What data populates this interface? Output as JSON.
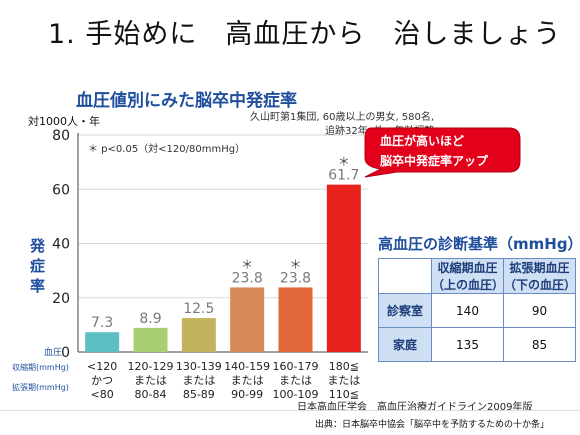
{
  "slide_title": "1. 手始めに　高血圧から　治しましょう",
  "callout": {
    "line1": "血圧が高いほど",
    "line2": "脳卒中発症率アップ",
    "color": "#e3001b"
  },
  "diagnosis_table": {
    "title": "高血圧の診断基準（mmHg）",
    "col_headers": [
      {
        "line1": "収縮期血圧",
        "line2": "（上の血圧）"
      },
      {
        "line1": "拡張期血圧",
        "line2": "（下の血圧）"
      }
    ],
    "rows": [
      {
        "label": "診察室",
        "systolic": "140",
        "diastolic": "90"
      },
      {
        "label": "家庭",
        "systolic": "135",
        "diastolic": "85"
      }
    ]
  },
  "guideline_source": "日本高血圧学会　高血圧治療ガイドライン2009年版",
  "citation": "出典：日本脳卒中協会「脳卒中を予防するための十か条」",
  "chart_data": {
    "type": "bar",
    "title": "血圧値別にみた脳卒中発症率",
    "y_unit": "対1000人・年",
    "ylabel": "発症率",
    "ylim": [
      0,
      80
    ],
    "yticks": [
      0,
      20,
      40,
      60,
      80
    ],
    "study_note_line1": "久山町第1集団, 60歳以上の男女, 580名,",
    "study_note_line2": "追跡32年, 性・年齢調整",
    "significance_note": "＊ p<0.05（対<120/80mmHg）",
    "axis_row_labels": {
      "bp": "血圧",
      "systolic": "収縮期(mmHg)",
      "diastolic": "拡張期(mmHg)"
    },
    "categories": [
      {
        "systolic": "<120",
        "conj": "かつ",
        "diastolic": "<80"
      },
      {
        "systolic": "120-129",
        "conj": "または",
        "diastolic": "80-84"
      },
      {
        "systolic": "130-139",
        "conj": "または",
        "diastolic": "85-89"
      },
      {
        "systolic": "140-159",
        "conj": "または",
        "diastolic": "90-99"
      },
      {
        "systolic": "160-179",
        "conj": "または",
        "diastolic": "100-109"
      },
      {
        "systolic": "180≦",
        "conj": "または",
        "diastolic": "110≦"
      }
    ],
    "values": [
      7.3,
      8.9,
      12.5,
      23.8,
      23.8,
      61.7
    ],
    "value_labels": [
      "7.3",
      "8.9",
      "12.5",
      "23.8",
      "23.8",
      "61.7"
    ],
    "significant": [
      false,
      false,
      false,
      true,
      true,
      true
    ],
    "significance_marker": "＊",
    "colors": [
      "#5bbfc4",
      "#a9cf73",
      "#c2b45c",
      "#d68a5a",
      "#e2673a",
      "#e8211c"
    ],
    "value_label_color": "#7a7a7a",
    "grid": true
  }
}
